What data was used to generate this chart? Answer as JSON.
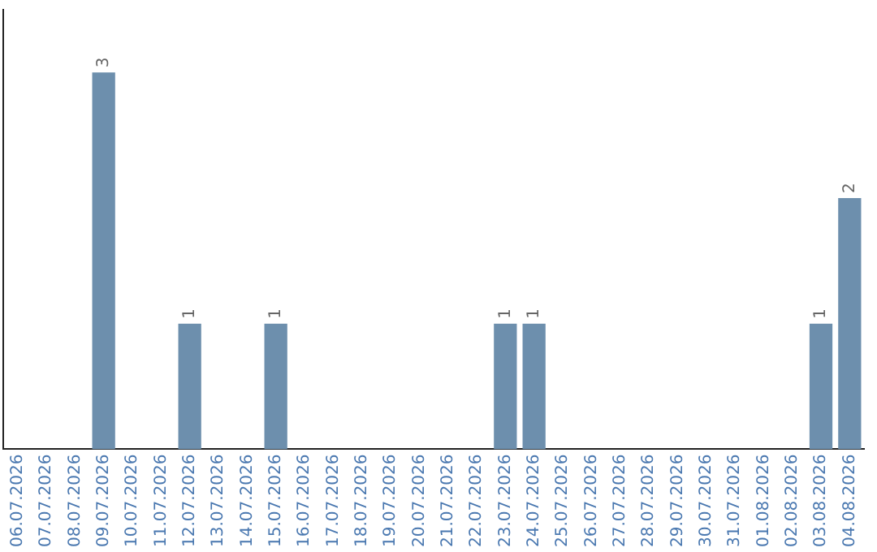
{
  "chart_data": {
    "type": "bar",
    "categories": [
      "06.07.2026",
      "07.07.2026",
      "08.07.2026",
      "09.07.2026",
      "10.07.2026",
      "11.07.2026",
      "12.07.2026",
      "13.07.2026",
      "14.07.2026",
      "15.07.2026",
      "16.07.2026",
      "17.07.2026",
      "18.07.2026",
      "19.07.2026",
      "20.07.2026",
      "21.07.2026",
      "22.07.2026",
      "23.07.2026",
      "24.07.2026",
      "25.07.2026",
      "26.07.2026",
      "27.07.2026",
      "28.07.2026",
      "29.07.2026",
      "30.07.2026",
      "31.07.2026",
      "01.08.2026",
      "02.08.2026",
      "03.08.2026",
      "04.08.2026"
    ],
    "values": [
      0,
      0,
      0,
      3,
      0,
      0,
      1,
      0,
      0,
      1,
      0,
      0,
      0,
      0,
      0,
      0,
      0,
      1,
      1,
      0,
      0,
      0,
      0,
      0,
      0,
      0,
      0,
      0,
      1,
      2
    ],
    "value_labels": [
      null,
      null,
      null,
      "3",
      null,
      null,
      "1",
      null,
      null,
      "1",
      null,
      null,
      null,
      null,
      null,
      null,
      null,
      "1",
      "1",
      null,
      null,
      null,
      null,
      null,
      null,
      null,
      null,
      null,
      "1",
      "2"
    ],
    "color": "#6d8fad",
    "grid": false,
    "legend": false,
    "tick_labels": "x"
  }
}
